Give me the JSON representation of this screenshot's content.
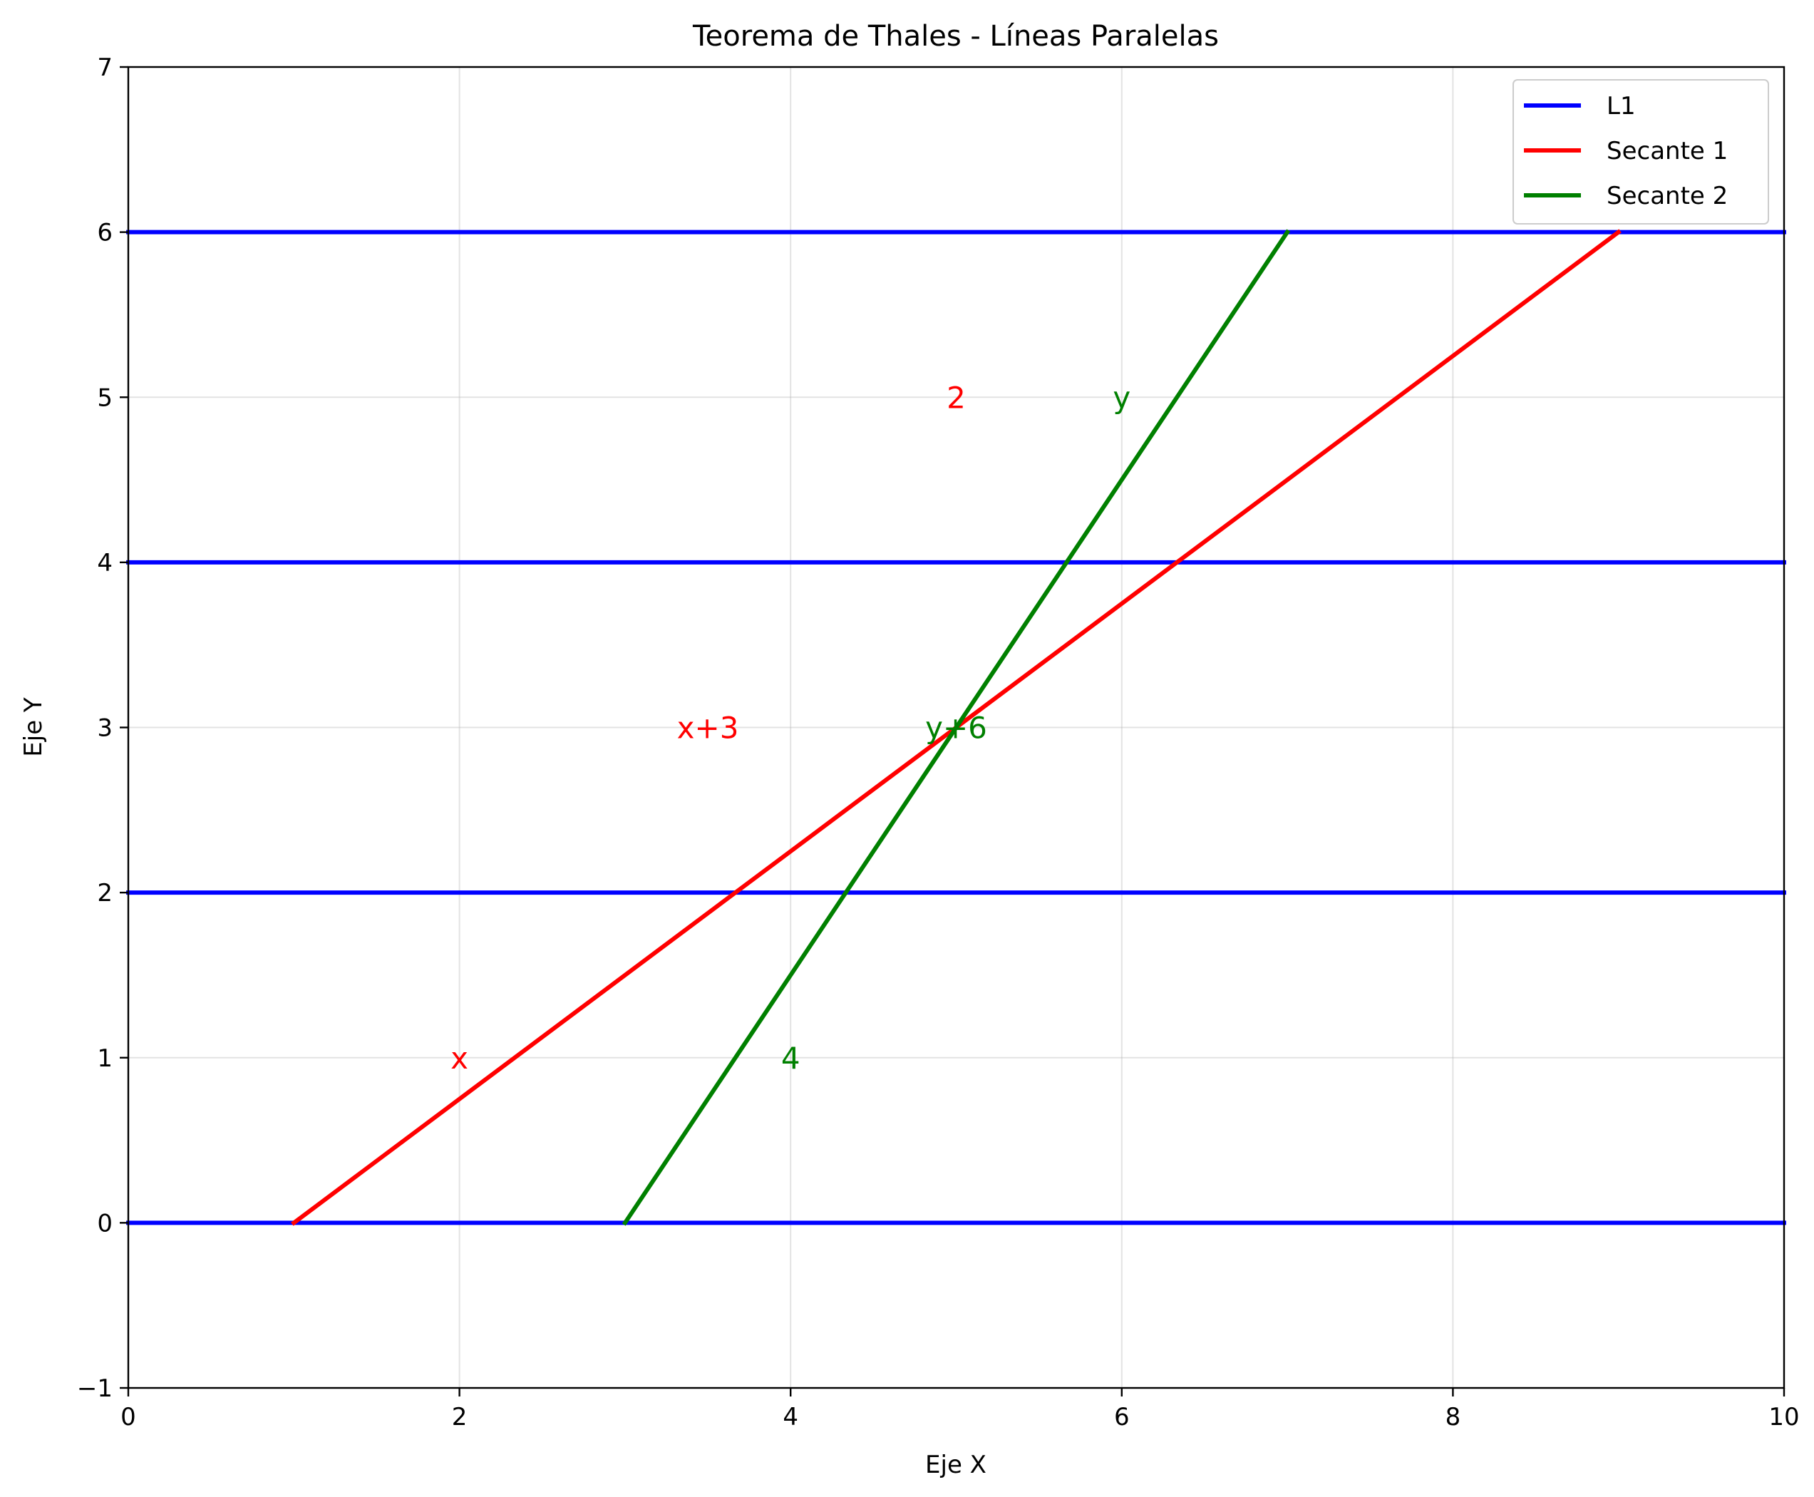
{
  "chart_data": {
    "type": "line",
    "title": "Teorema de Thales - Líneas Paralelas",
    "xlabel": "Eje X",
    "ylabel": "Eje Y",
    "xlim": [
      0,
      10
    ],
    "ylim": [
      -1,
      7
    ],
    "x_ticks": [
      0,
      2,
      4,
      6,
      8,
      10
    ],
    "y_ticks": [
      -1,
      0,
      1,
      2,
      3,
      4,
      5,
      6,
      7
    ],
    "x_tick_labels": [
      "0",
      "2",
      "4",
      "6",
      "8",
      "10"
    ],
    "y_tick_labels": [
      "−1",
      "0",
      "1",
      "2",
      "3",
      "4",
      "5",
      "6",
      "7"
    ],
    "grid": true,
    "legend_position": "top-right",
    "series": [
      {
        "name": "L1",
        "color": "#0000ff",
        "x": [
          0,
          10
        ],
        "y": [
          0,
          0
        ]
      },
      {
        "color": "#0000ff",
        "x": [
          0,
          10
        ],
        "y": [
          2,
          2
        ]
      },
      {
        "color": "#0000ff",
        "x": [
          0,
          10
        ],
        "y": [
          4,
          4
        ]
      },
      {
        "color": "#0000ff",
        "x": [
          0,
          10
        ],
        "y": [
          6,
          6
        ]
      },
      {
        "name": "Secante 1",
        "color": "#ff0000",
        "x": [
          1,
          9
        ],
        "y": [
          0,
          6
        ]
      },
      {
        "name": "Secante 2",
        "color": "#008000",
        "x": [
          3,
          7
        ],
        "y": [
          0,
          6
        ]
      }
    ],
    "annotations": [
      {
        "text": "x",
        "x": 2,
        "y": 1,
        "color": "#ff0000"
      },
      {
        "text": "x+3",
        "x": 3.5,
        "y": 3,
        "color": "#ff0000"
      },
      {
        "text": "2",
        "x": 5,
        "y": 5,
        "color": "#ff0000"
      },
      {
        "text": "4",
        "x": 4,
        "y": 1,
        "color": "#008000"
      },
      {
        "text": "y+6",
        "x": 5,
        "y": 3,
        "color": "#008000"
      },
      {
        "text": "y",
        "x": 6,
        "y": 5,
        "color": "#008000"
      }
    ],
    "legend": [
      {
        "label": "L1",
        "color": "#0000ff"
      },
      {
        "label": "Secante 1",
        "color": "#ff0000"
      },
      {
        "label": "Secante 2",
        "color": "#008000"
      }
    ]
  }
}
